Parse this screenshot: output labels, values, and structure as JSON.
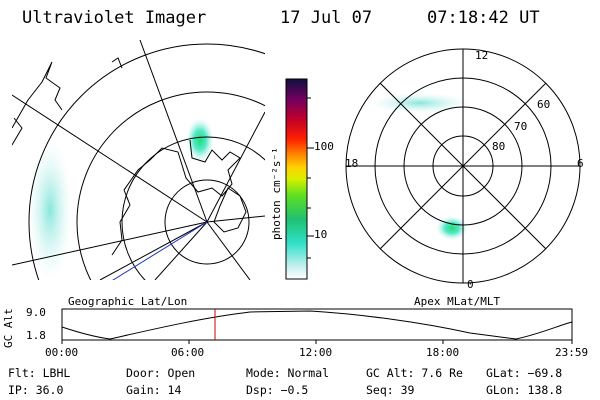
{
  "header": {
    "instrument": "Ultraviolet Imager",
    "date": "17 Jul 07",
    "time": "07:18:42 UT"
  },
  "colorbar": {
    "unit_label": "photon cm⁻²s⁻¹",
    "ticks": [
      "100",
      "10"
    ]
  },
  "left_map": {
    "caption": "Geographic Lat/Lon"
  },
  "right_map": {
    "caption": "Apex MLat/MLT",
    "mlt_labels": {
      "top": "12",
      "left": "18",
      "right": "6",
      "bottom": "0"
    },
    "lat_labels": [
      "60",
      "70",
      "80"
    ]
  },
  "altitude_plot": {
    "y_label": "GC Alt",
    "y_ticks": [
      "9.0",
      "1.8"
    ],
    "x_ticks": [
      "00:00",
      "06:00",
      "12:00",
      "18:00",
      "23:59"
    ]
  },
  "footer": {
    "row1": {
      "flt": "Flt: LBHL",
      "door": "Door: Open",
      "mode": "Mode: Normal",
      "gc_alt": "GC Alt: 7.6 Re",
      "glat": "GLat: −69.8"
    },
    "row2": {
      "ip": "IP: 36.0",
      "gain": "Gain: 14",
      "dsp": "Dsp:   −0.5",
      "seq": "Seq: 39",
      "glon": "GLon: 138.8"
    }
  },
  "colors": {
    "line": "#000000",
    "marker": "#cc0000",
    "path": "#2233cc",
    "aurora_core": "#22dd88",
    "aurora_edge": "#aeeee8"
  }
}
